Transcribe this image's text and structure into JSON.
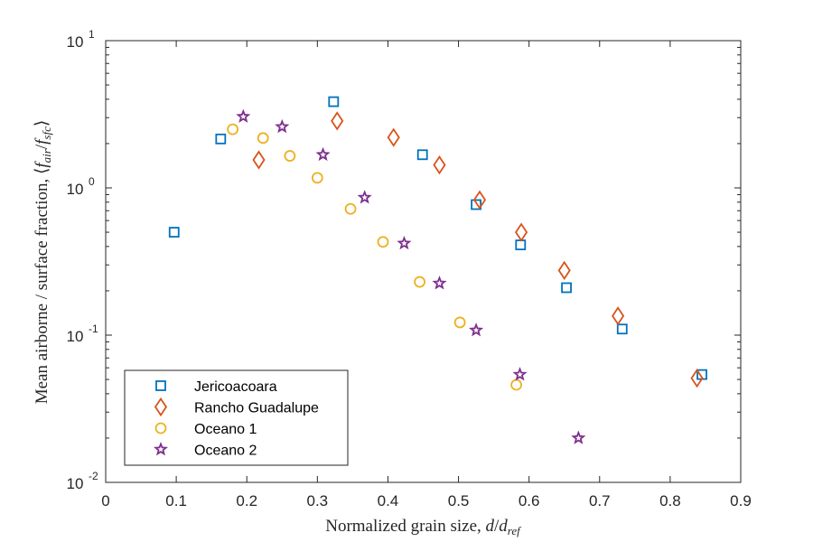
{
  "chart_data": {
    "type": "scatter",
    "xlabel": "Normalized grain size, d/d_ref",
    "ylabel": "Mean airborne / surface fraction, ⟨f_air/f_sfc⟩",
    "xlim": [
      0,
      0.9
    ],
    "ylim": [
      0.01,
      10
    ],
    "yscale": "log",
    "x_ticks": [
      "0",
      "0.1",
      "0.2",
      "0.3",
      "0.4",
      "0.5",
      "0.6",
      "0.7",
      "0.8",
      "0.9"
    ],
    "y_ticks": [
      {
        "base": "10",
        "exp": "-2"
      },
      {
        "base": "10",
        "exp": "-1"
      },
      {
        "base": "10",
        "exp": "0"
      },
      {
        "base": "10",
        "exp": "1"
      }
    ],
    "grid": false,
    "legend_position": "bottom-left",
    "series": [
      {
        "name": "Jericoacoara",
        "marker": "square",
        "color": "#0072BD",
        "x": [
          0.097,
          0.163,
          0.323,
          0.449,
          0.525,
          0.588,
          0.653,
          0.732,
          0.845
        ],
        "y": [
          0.5,
          2.15,
          3.85,
          1.68,
          0.77,
          0.41,
          0.21,
          0.11,
          0.054
        ]
      },
      {
        "name": "Rancho Guadalupe",
        "marker": "diamond",
        "color": "#D95319",
        "x": [
          0.217,
          0.328,
          0.408,
          0.473,
          0.53,
          0.589,
          0.65,
          0.726,
          0.838
        ],
        "y": [
          1.55,
          2.85,
          2.2,
          1.43,
          0.83,
          0.5,
          0.275,
          0.135,
          0.051
        ]
      },
      {
        "name": "Oceano 1",
        "marker": "circle",
        "color": "#EDB120",
        "x": [
          0.18,
          0.223,
          0.261,
          0.3,
          0.347,
          0.393,
          0.445,
          0.502,
          0.582
        ],
        "y": [
          2.5,
          2.18,
          1.65,
          1.17,
          0.72,
          0.43,
          0.23,
          0.122,
          0.046
        ]
      },
      {
        "name": "Oceano 2",
        "marker": "star",
        "color": "#7E2F8E",
        "x": [
          0.195,
          0.25,
          0.308,
          0.367,
          0.423,
          0.473,
          0.525,
          0.587,
          0.67
        ],
        "y": [
          3.05,
          2.6,
          1.68,
          0.86,
          0.42,
          0.225,
          0.108,
          0.054,
          0.02
        ]
      }
    ]
  }
}
